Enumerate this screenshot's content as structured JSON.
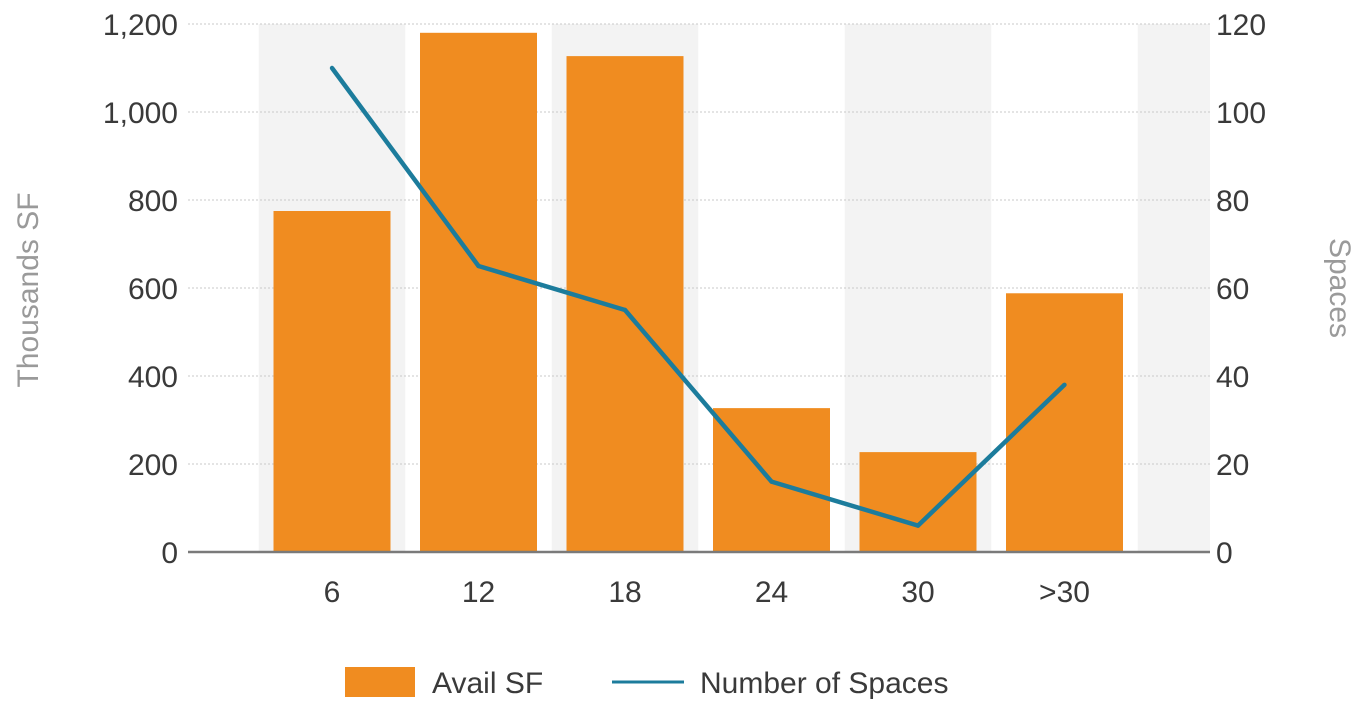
{
  "chart_data": {
    "type": "bar",
    "categories": [
      "6",
      "12",
      "18",
      "24",
      "30",
      ">30"
    ],
    "series": [
      {
        "name": "Avail SF",
        "type": "bar",
        "axis": "left",
        "values": [
          775,
          1180,
          1127,
          327,
          227,
          588
        ]
      },
      {
        "name": "Number of Spaces",
        "type": "line",
        "axis": "right",
        "values": [
          110,
          65,
          55,
          16,
          6,
          38
        ]
      }
    ],
    "ylabel": "Thousands SF",
    "y2label": "Spaces",
    "ylim": [
      0,
      1200
    ],
    "y2lim": [
      0,
      120
    ],
    "yticks": [
      "0",
      "200",
      "400",
      "600",
      "800",
      "1,000",
      "1,200"
    ],
    "y2ticks": [
      "0",
      "20",
      "40",
      "60",
      "80",
      "100",
      "120"
    ],
    "grid": true,
    "legend_position": "bottom",
    "colors": {
      "bar": "#f08c20",
      "line": "#1c7c9c",
      "band": "#f3f3f3",
      "grid": "#c8c8c8",
      "axis": "#7a7a7a"
    }
  }
}
